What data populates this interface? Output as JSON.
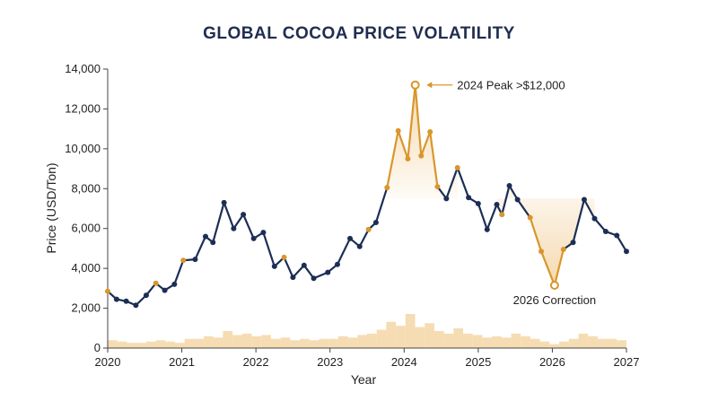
{
  "chart_data": {
    "type": "line",
    "title": "GLOBAL COCOA PRICE VOLATILITY",
    "xlabel": "Year",
    "ylabel": "Price (USD/Ton)",
    "xlim": [
      2020,
      2027
    ],
    "ylim": [
      0,
      14000
    ],
    "x_ticks": [
      "2020",
      "2021",
      "2022",
      "2023",
      "2024",
      "2025",
      "2026",
      "2027"
    ],
    "y_ticks": [
      "0",
      "2,000",
      "4,000",
      "6,000",
      "8,000",
      "10,000",
      "12,000",
      "14,000"
    ],
    "y_tick_values": [
      0,
      2000,
      4000,
      6000,
      8000,
      10000,
      12000,
      14000
    ],
    "grid": false,
    "legend": "none",
    "series": [
      {
        "x": [
          2020.0,
          2020.12,
          2020.25,
          2020.38,
          2020.52,
          2020.65,
          2020.77,
          2020.9,
          2021.02,
          2021.18,
          2021.32,
          2021.42,
          2021.57,
          2021.7,
          2021.83,
          2021.97,
          2022.1,
          2022.25,
          2022.38,
          2022.5,
          2022.65,
          2022.78,
          2022.97,
          2023.1,
          2023.27,
          2023.4,
          2023.52,
          2023.62,
          2023.77,
          2023.92,
          2024.05,
          2024.15,
          2024.23,
          2024.35,
          2024.45,
          2024.57,
          2024.72,
          2024.87,
          2025.0,
          2025.12,
          2025.25,
          2025.32,
          2025.42,
          2025.53,
          2025.7,
          2025.85,
          2026.03,
          2026.15,
          2026.28,
          2026.43,
          2026.57,
          2026.72,
          2026.87,
          2027.0
        ],
        "y": [
          2850,
          2450,
          2350,
          2150,
          2650,
          3250,
          2900,
          3200,
          4400,
          4450,
          5600,
          5300,
          7300,
          6000,
          6700,
          5500,
          5800,
          4100,
          4550,
          3550,
          4150,
          3500,
          3800,
          4200,
          5500,
          5100,
          5950,
          6300,
          8050,
          10900,
          9500,
          13200,
          9650,
          10850,
          8100,
          7500,
          9050,
          7550,
          7250,
          5950,
          7200,
          6700,
          8150,
          7450,
          6550,
          4850,
          3150,
          4950,
          5300,
          7450,
          6500,
          5850,
          5650,
          4850
        ]
      }
    ],
    "highlighted_points": [
      2020.0,
      2020.65,
      2021.02,
      2022.38,
      2023.52,
      2023.77,
      2023.92,
      2024.05,
      2024.15,
      2024.23,
      2024.35,
      2024.45,
      2024.72,
      2025.32,
      2025.7,
      2025.85,
      2026.03,
      2026.15
    ],
    "shaded_regions": [
      {
        "x_range": [
          2023.77,
          2024.72
        ],
        "baseline": 7500
      },
      {
        "x_range": [
          2025.25,
          2026.57
        ],
        "baseline": 7500
      }
    ],
    "volume_bars": [
      0.3,
      0.25,
      0.2,
      0.2,
      0.25,
      0.3,
      0.25,
      0.2,
      0.35,
      0.35,
      0.45,
      0.4,
      0.65,
      0.5,
      0.55,
      0.45,
      0.5,
      0.35,
      0.4,
      0.3,
      0.35,
      0.3,
      0.35,
      0.35,
      0.45,
      0.4,
      0.5,
      0.55,
      0.7,
      1.0,
      0.85,
      1.3,
      0.8,
      0.95,
      0.65,
      0.55,
      0.75,
      0.55,
      0.5,
      0.4,
      0.45,
      0.4,
      0.55,
      0.45,
      0.35,
      0.25,
      0.15,
      0.25,
      0.35,
      0.55,
      0.45,
      0.35,
      0.35,
      0.3
    ],
    "annotations": [
      {
        "text": "2024 Peak >$12,000",
        "x": 2024.23,
        "y": 13200
      },
      {
        "text": "2026 Correction",
        "x": 2026.03,
        "y": 3150
      }
    ],
    "colors": {
      "line": "#1c2e55",
      "highlight": "#d9962b",
      "fill": "#f4d5a6",
      "volume": "#f3d09a",
      "title": "#1f2d50"
    }
  }
}
